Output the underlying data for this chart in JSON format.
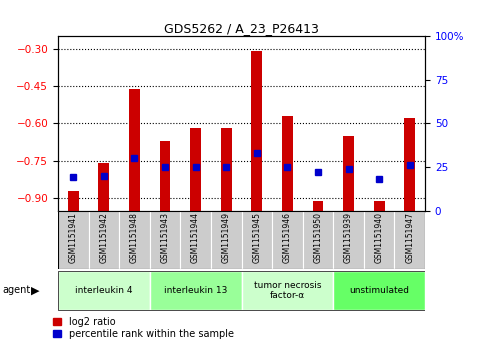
{
  "title": "GDS5262 / A_23_P26413",
  "samples": [
    "GSM1151941",
    "GSM1151942",
    "GSM1151948",
    "GSM1151943",
    "GSM1151944",
    "GSM1151949",
    "GSM1151945",
    "GSM1151946",
    "GSM1151950",
    "GSM1151939",
    "GSM1151940",
    "GSM1151947"
  ],
  "log2_ratio": [
    -0.87,
    -0.76,
    -0.46,
    -0.67,
    -0.62,
    -0.62,
    -0.31,
    -0.57,
    -0.91,
    -0.65,
    -0.91,
    -0.58
  ],
  "percentile_rank": [
    19,
    20,
    30,
    25,
    25,
    25,
    33,
    25,
    22,
    24,
    18,
    26
  ],
  "groups": [
    {
      "label": "interleukin 4",
      "start": 0,
      "end": 3,
      "color": "#ccffcc"
    },
    {
      "label": "interleukin 13",
      "start": 3,
      "end": 6,
      "color": "#99ff99"
    },
    {
      "label": "tumor necrosis\nfactor-α",
      "start": 6,
      "end": 9,
      "color": "#ccffcc"
    },
    {
      "label": "unstimulated",
      "start": 9,
      "end": 12,
      "color": "#66ff66"
    }
  ],
  "ylim_left": [
    -0.95,
    -0.25
  ],
  "ylim_right": [
    0,
    100
  ],
  "yticks_left": [
    -0.9,
    -0.75,
    -0.6,
    -0.45,
    -0.3
  ],
  "yticks_right": [
    0,
    25,
    50,
    75,
    100
  ],
  "bar_color": "#cc0000",
  "dot_color": "#0000cc",
  "bar_width": 0.35,
  "background_color": "#ffffff",
  "sample_bg_color": "#cccccc",
  "legend_items": [
    "log2 ratio",
    "percentile rank within the sample"
  ]
}
